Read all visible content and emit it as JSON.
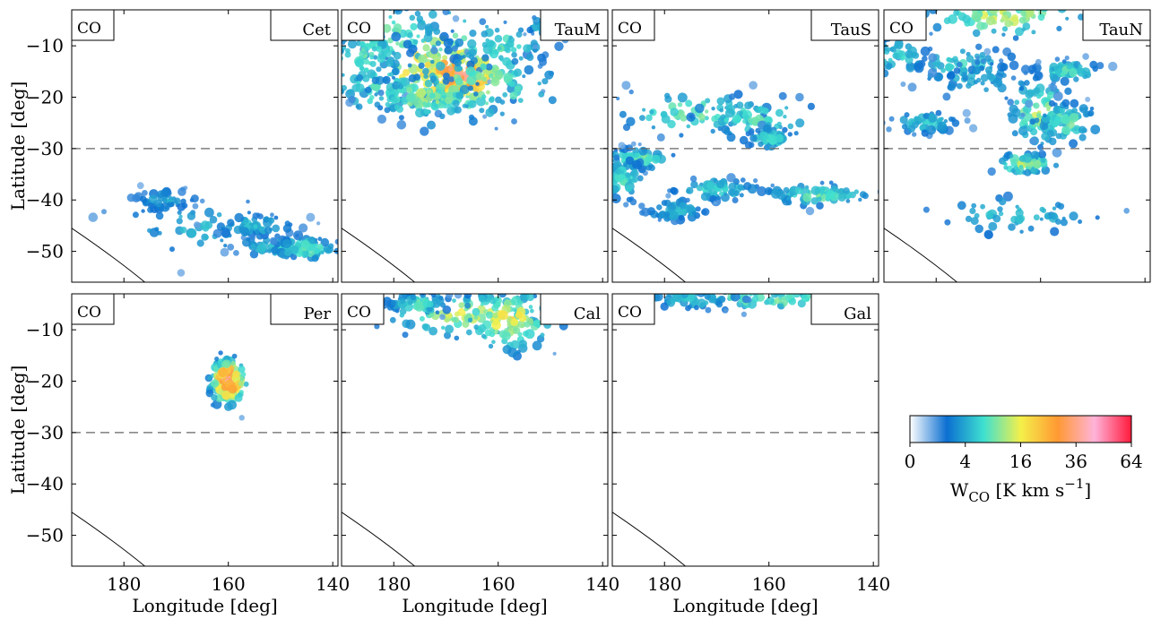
{
  "figure": {
    "colorbar": {
      "ticks": [
        "0",
        "4",
        "16",
        "36",
        "64"
      ],
      "tick_values": [
        0,
        4,
        16,
        36,
        64
      ],
      "label": "W_CO [K km s^-1]",
      "label_main": "W",
      "label_sub": "CO",
      "label_unit": " [K km s",
      "label_sup": "−1",
      "label_end": "]",
      "colors": [
        "#ffffff",
        "#0b6fd1",
        "#3fe0d0",
        "#f4f04a",
        "#ff9933",
        "#ffb3d9",
        "#ff1a3c"
      ],
      "scale": "sqrt"
    },
    "tracer_label": "CO",
    "reference_latitude": -30
  },
  "chart_data": [
    {
      "type": "heatmap",
      "region": "Cet",
      "tracer": "CO",
      "row": 0,
      "col": 0,
      "xlim": [
        190,
        139
      ],
      "ylim": [
        -56,
        -3
      ],
      "xlabel": "",
      "ylabel": "Latitude [deg]",
      "clumps": [
        [
          165,
          -45,
          8,
          3,
          2.5
        ],
        [
          150,
          -49,
          4,
          1,
          4
        ],
        [
          145,
          -49.5,
          3,
          1,
          6
        ],
        [
          172,
          -40,
          3,
          1,
          2
        ],
        [
          155,
          -45,
          4,
          1,
          3
        ]
      ]
    },
    {
      "type": "heatmap",
      "region": "TauM",
      "tracer": "CO",
      "row": 0,
      "col": 1,
      "xlim": [
        190,
        139
      ],
      "ylim": [
        -56,
        -3
      ],
      "xlabel": "",
      "ylabel": "",
      "clumps": [
        [
          172,
          -14,
          8,
          5,
          14
        ],
        [
          168,
          -16,
          5,
          3,
          28
        ],
        [
          180,
          -8,
          5,
          3,
          6
        ],
        [
          182,
          -18,
          6,
          3,
          5
        ],
        [
          185,
          -12,
          4,
          3,
          5
        ],
        [
          160,
          -10,
          5,
          2,
          5
        ],
        [
          165,
          -18,
          8,
          3,
          8
        ],
        [
          150,
          -6,
          2,
          1,
          5
        ],
        [
          174,
          -20,
          5,
          2,
          8
        ]
      ]
    },
    {
      "type": "heatmap",
      "region": "TauS",
      "tracer": "CO",
      "row": 0,
      "col": 2,
      "xlim": [
        190,
        139
      ],
      "ylim": [
        -56,
        -3
      ],
      "xlabel": "",
      "ylabel": "",
      "clumps": [
        [
          175,
          -23,
          7,
          2,
          6
        ],
        [
          163,
          -24,
          6,
          2,
          5
        ],
        [
          185,
          -32,
          3,
          1,
          6
        ],
        [
          188,
          -36,
          2,
          2,
          5
        ],
        [
          170,
          -38,
          4,
          1,
          4
        ],
        [
          150,
          -39,
          5,
          1,
          6
        ],
        [
          160,
          -28,
          2,
          1,
          5
        ],
        [
          178,
          -42,
          3,
          1,
          3
        ]
      ]
    },
    {
      "type": "heatmap",
      "region": "TauN",
      "tracer": "CO",
      "row": 0,
      "col": 3,
      "xlim": [
        190,
        139
      ],
      "ylim": [
        -56,
        -3
      ],
      "xlabel": "",
      "ylabel": "",
      "clumps": [
        [
          167,
          -4,
          7,
          2,
          10
        ],
        [
          160,
          -23,
          3,
          3,
          9
        ],
        [
          155,
          -15,
          3,
          1,
          5
        ],
        [
          155,
          -25,
          3,
          2,
          6
        ],
        [
          163,
          -33,
          3,
          1,
          8
        ],
        [
          175,
          -14,
          5,
          2,
          4
        ],
        [
          188,
          -12,
          3,
          2,
          4
        ],
        [
          182,
          -25,
          3,
          1,
          4
        ],
        [
          165,
          -43,
          8,
          2,
          3
        ],
        [
          170,
          -17,
          6,
          2,
          2
        ]
      ]
    },
    {
      "type": "heatmap",
      "region": "Per",
      "tracer": "CO",
      "row": 1,
      "col": 0,
      "xlim": [
        190,
        139
      ],
      "ylim": [
        -56,
        -3
      ],
      "xlabel": "Longitude [deg]",
      "ylabel": "Latitude [deg]",
      "clumps": [
        [
          160,
          -20,
          1.5,
          2,
          30
        ]
      ]
    },
    {
      "type": "heatmap",
      "region": "Cal",
      "tracer": "CO",
      "row": 1,
      "col": 1,
      "xlim": [
        190,
        139
      ],
      "ylim": [
        -56,
        -3
      ],
      "xlabel": "Longitude [deg]",
      "ylabel": "",
      "clumps": [
        [
          165,
          -7,
          8,
          2,
          10
        ],
        [
          158,
          -8,
          4,
          3,
          12
        ],
        [
          175,
          -5,
          3,
          1,
          5
        ]
      ]
    },
    {
      "type": "heatmap",
      "region": "Gal",
      "tracer": "CO",
      "row": 1,
      "col": 2,
      "xlim": [
        190,
        139
      ],
      "ylim": [
        -56,
        -3
      ],
      "xlabel": "Longitude [deg]",
      "ylabel": "",
      "clumps": [
        [
          160,
          -4,
          10,
          1,
          6
        ],
        [
          175,
          -4,
          5,
          1,
          3
        ]
      ]
    }
  ],
  "x_tick_labels": [
    "180",
    "160",
    "140"
  ],
  "x_tick_values": [
    180,
    160,
    140
  ],
  "y_tick_labels": [
    "−10",
    "−20",
    "−30",
    "−40",
    "−50"
  ],
  "y_tick_values": [
    -10,
    -20,
    -30,
    -40,
    -50
  ],
  "axis_labels": {
    "x": "Longitude [deg]",
    "y": "Latitude [deg]"
  }
}
